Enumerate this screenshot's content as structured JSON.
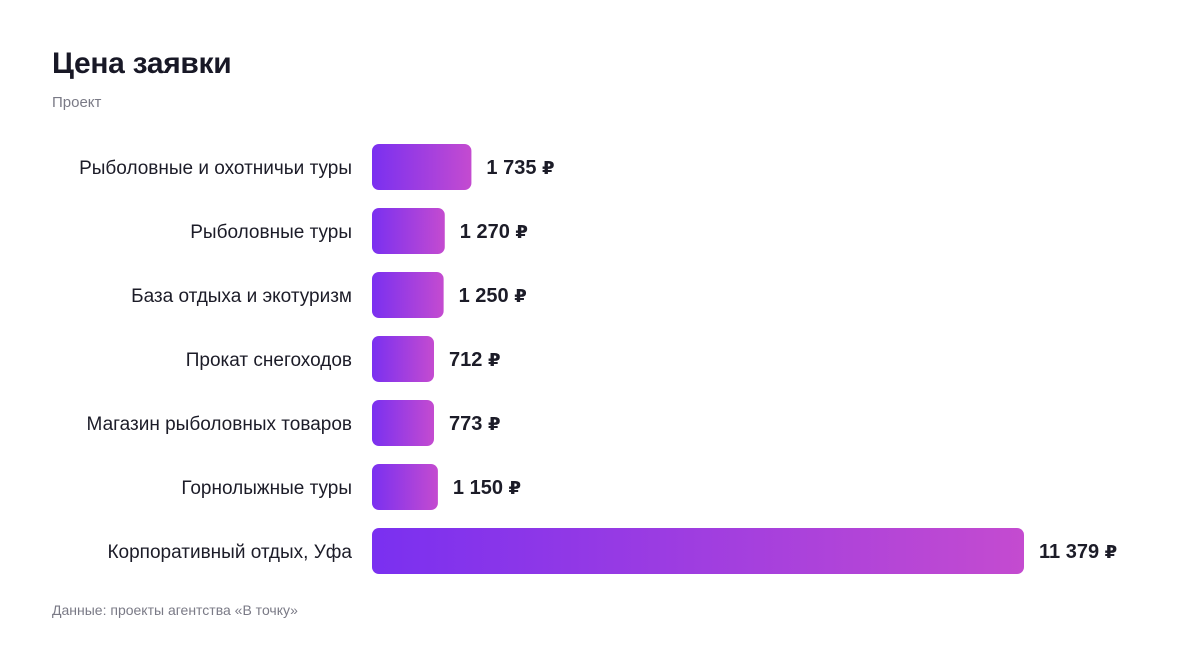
{
  "header": {
    "title": "Цена заявки",
    "subtitle": "Проект"
  },
  "footer": {
    "note": "Данные: проекты агентства «В точку»"
  },
  "chart_data": {
    "type": "bar",
    "orientation": "horizontal",
    "title": "Цена заявки",
    "subtitle": "Проект",
    "categories": [
      "Рыболовные и охотничьи туры",
      "Рыболовные туры",
      "База отдыха и экотуризм",
      "Прокат снегоходов",
      "Магазин рыболовных товаров",
      "Горнолыжные туры",
      "Корпоративный отдых, Уфа"
    ],
    "values": [
      1735,
      1270,
      1250,
      712,
      773,
      1150,
      11379
    ],
    "value_labels": [
      "1 735",
      "1 270",
      "1 250",
      "712",
      "773",
      "1 150",
      "11 379"
    ],
    "currency": "₽",
    "xlim": [
      0,
      11379
    ],
    "grid": false,
    "legend": "none",
    "colors": {
      "bar_start": "#7a30f0",
      "bar_end": "#c44bd0",
      "text": "#1c1c28",
      "muted": "#7a7a86"
    }
  }
}
